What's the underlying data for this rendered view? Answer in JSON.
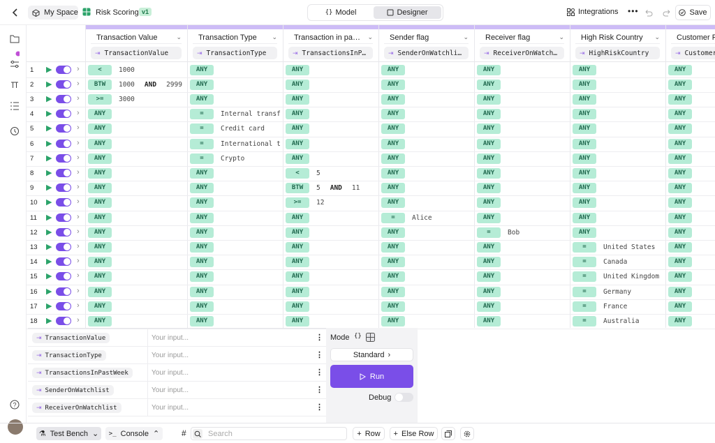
{
  "header": {
    "breadcrumb": [
      "My Space",
      "Risk Scoring"
    ],
    "version": "v1",
    "tabs": [
      "Model",
      "Designer"
    ],
    "actions": [
      "Integrations",
      "Save"
    ]
  },
  "columns": [
    {
      "title": "Transaction Value",
      "field": "TransactionValue"
    },
    {
      "title": "Transaction Type",
      "field": "TransactionType"
    },
    {
      "title": "Transaction in pa…",
      "field": "TransactionsInP…"
    },
    {
      "title": "Sender flag",
      "field": "SenderOnWatchli…"
    },
    {
      "title": "Receiver flag",
      "field": "ReceiverOnWatch…"
    },
    {
      "title": "High Risk Country",
      "field": "HighRiskCountry"
    },
    {
      "title": "Customer P",
      "field": "Customer"
    }
  ],
  "rows": [
    {
      "n": 1,
      "cells": [
        [
          "<",
          "1000"
        ],
        [
          "ANY"
        ],
        [
          "ANY"
        ],
        [
          "ANY"
        ],
        [
          "ANY"
        ],
        [
          "ANY"
        ],
        [
          "ANY"
        ]
      ]
    },
    {
      "n": 2,
      "cells": [
        [
          "BTW",
          "1000",
          "AND",
          "2999"
        ],
        [
          "ANY"
        ],
        [
          "ANY"
        ],
        [
          "ANY"
        ],
        [
          "ANY"
        ],
        [
          "ANY"
        ],
        [
          "ANY"
        ]
      ]
    },
    {
      "n": 3,
      "cells": [
        [
          ">=",
          "3000"
        ],
        [
          "ANY"
        ],
        [
          "ANY"
        ],
        [
          "ANY"
        ],
        [
          "ANY"
        ],
        [
          "ANY"
        ],
        [
          "ANY"
        ]
      ]
    },
    {
      "n": 4,
      "cells": [
        [
          "ANY"
        ],
        [
          "=",
          "Internal transf"
        ],
        [
          "ANY"
        ],
        [
          "ANY"
        ],
        [
          "ANY"
        ],
        [
          "ANY"
        ],
        [
          "ANY"
        ]
      ]
    },
    {
      "n": 5,
      "cells": [
        [
          "ANY"
        ],
        [
          "=",
          "Credit card"
        ],
        [
          "ANY"
        ],
        [
          "ANY"
        ],
        [
          "ANY"
        ],
        [
          "ANY"
        ],
        [
          "ANY"
        ]
      ]
    },
    {
      "n": 6,
      "cells": [
        [
          "ANY"
        ],
        [
          "=",
          "International t"
        ],
        [
          "ANY"
        ],
        [
          "ANY"
        ],
        [
          "ANY"
        ],
        [
          "ANY"
        ],
        [
          "ANY"
        ]
      ]
    },
    {
      "n": 7,
      "cells": [
        [
          "ANY"
        ],
        [
          "=",
          "Crypto"
        ],
        [
          "ANY"
        ],
        [
          "ANY"
        ],
        [
          "ANY"
        ],
        [
          "ANY"
        ],
        [
          "ANY"
        ]
      ]
    },
    {
      "n": 8,
      "cells": [
        [
          "ANY"
        ],
        [
          "ANY"
        ],
        [
          "<",
          "5"
        ],
        [
          "ANY"
        ],
        [
          "ANY"
        ],
        [
          "ANY"
        ],
        [
          "ANY"
        ]
      ]
    },
    {
      "n": 9,
      "cells": [
        [
          "ANY"
        ],
        [
          "ANY"
        ],
        [
          "BTW",
          "5",
          "AND",
          "11"
        ],
        [
          "ANY"
        ],
        [
          "ANY"
        ],
        [
          "ANY"
        ],
        [
          "ANY"
        ]
      ]
    },
    {
      "n": 10,
      "cells": [
        [
          "ANY"
        ],
        [
          "ANY"
        ],
        [
          ">=",
          "12"
        ],
        [
          "ANY"
        ],
        [
          "ANY"
        ],
        [
          "ANY"
        ],
        [
          "ANY"
        ]
      ]
    },
    {
      "n": 11,
      "cells": [
        [
          "ANY"
        ],
        [
          "ANY"
        ],
        [
          "ANY"
        ],
        [
          "=",
          "Alice"
        ],
        [
          "ANY"
        ],
        [
          "ANY"
        ],
        [
          "ANY"
        ]
      ]
    },
    {
      "n": 12,
      "cells": [
        [
          "ANY"
        ],
        [
          "ANY"
        ],
        [
          "ANY"
        ],
        [
          "ANY"
        ],
        [
          "=",
          "Bob"
        ],
        [
          "ANY"
        ],
        [
          "ANY"
        ]
      ]
    },
    {
      "n": 13,
      "cells": [
        [
          "ANY"
        ],
        [
          "ANY"
        ],
        [
          "ANY"
        ],
        [
          "ANY"
        ],
        [
          "ANY"
        ],
        [
          "=",
          "United States"
        ],
        [
          "ANY"
        ]
      ]
    },
    {
      "n": 14,
      "cells": [
        [
          "ANY"
        ],
        [
          "ANY"
        ],
        [
          "ANY"
        ],
        [
          "ANY"
        ],
        [
          "ANY"
        ],
        [
          "=",
          "Canada"
        ],
        [
          "ANY"
        ]
      ]
    },
    {
      "n": 15,
      "cells": [
        [
          "ANY"
        ],
        [
          "ANY"
        ],
        [
          "ANY"
        ],
        [
          "ANY"
        ],
        [
          "ANY"
        ],
        [
          "=",
          "United Kingdom"
        ],
        [
          "ANY"
        ]
      ]
    },
    {
      "n": 16,
      "cells": [
        [
          "ANY"
        ],
        [
          "ANY"
        ],
        [
          "ANY"
        ],
        [
          "ANY"
        ],
        [
          "ANY"
        ],
        [
          "=",
          "Germany"
        ],
        [
          "ANY"
        ]
      ]
    },
    {
      "n": 17,
      "cells": [
        [
          "ANY"
        ],
        [
          "ANY"
        ],
        [
          "ANY"
        ],
        [
          "ANY"
        ],
        [
          "ANY"
        ],
        [
          "=",
          "France"
        ],
        [
          "ANY"
        ]
      ]
    },
    {
      "n": 18,
      "cells": [
        [
          "ANY"
        ],
        [
          "ANY"
        ],
        [
          "ANY"
        ],
        [
          "ANY"
        ],
        [
          "ANY"
        ],
        [
          "=",
          "Australia"
        ],
        [
          "ANY"
        ]
      ]
    }
  ],
  "test_bench": {
    "fields": [
      "TransactionValue",
      "TransactionType",
      "TransactionsInPastWeek",
      "SenderOnWatchlist",
      "ReceiverOnWatchlist"
    ],
    "placeholder": "Your input...",
    "mode_label": "Mode",
    "mode": "Standard",
    "run": "Run",
    "debug": "Debug"
  },
  "footer": {
    "tabs": [
      "Test Bench",
      "Console"
    ],
    "search": "Search",
    "buttons": [
      "Row",
      "Else Row"
    ]
  }
}
